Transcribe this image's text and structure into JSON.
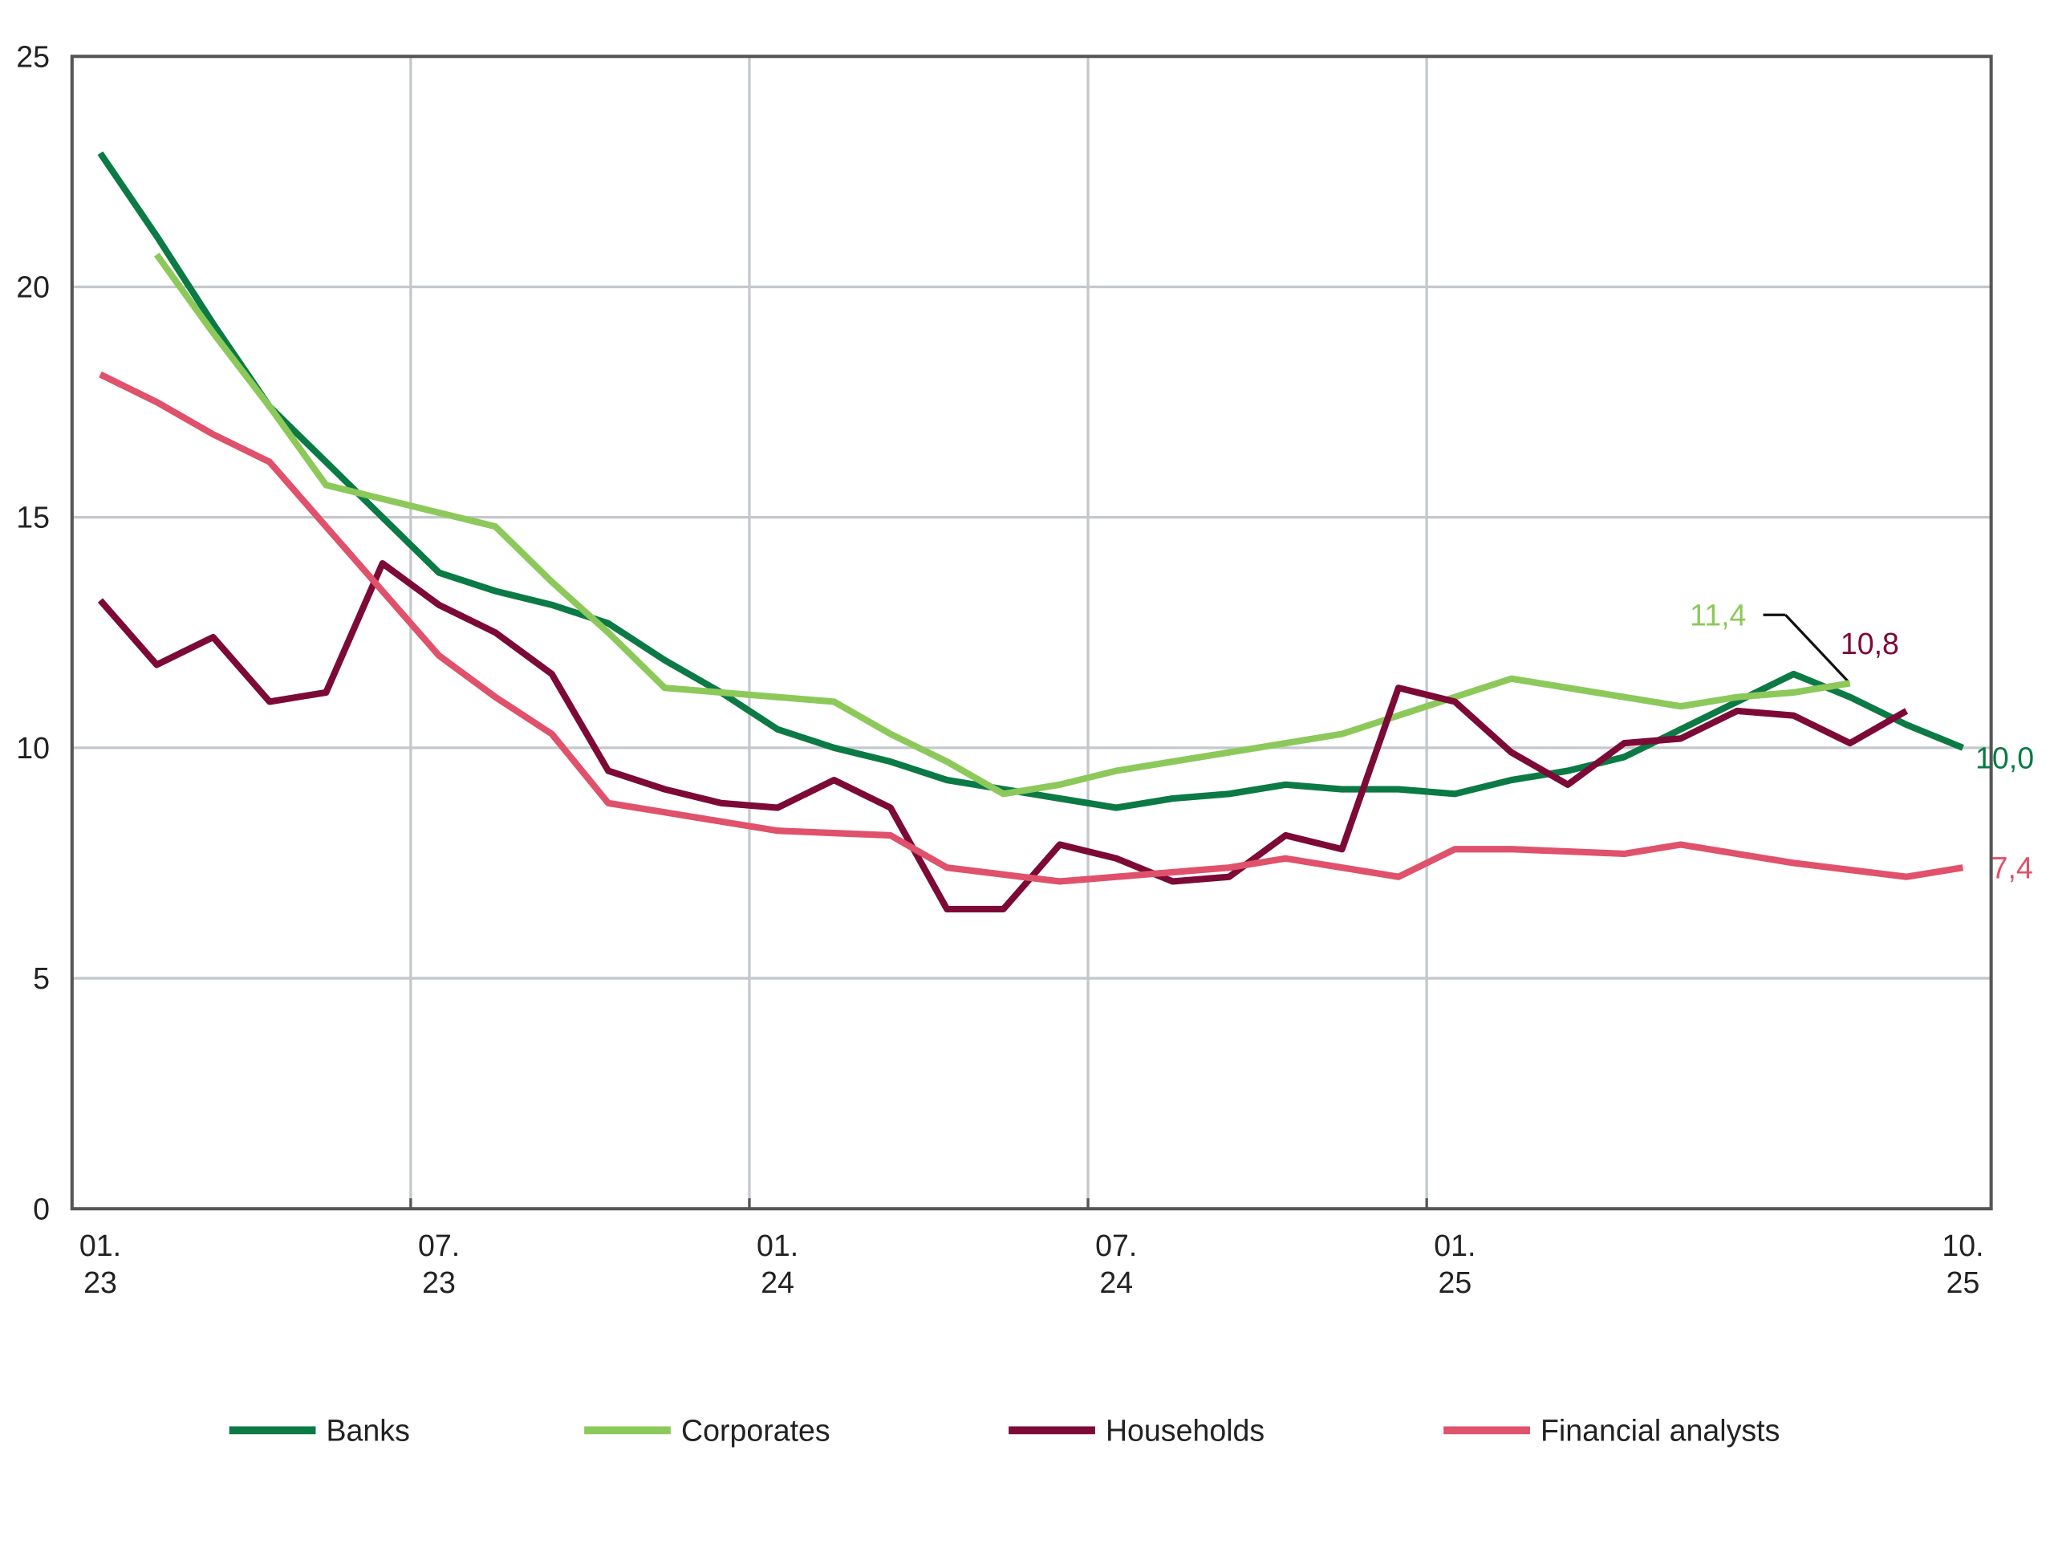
{
  "chart_data": {
    "type": "line",
    "categories": [
      "01. 23",
      null,
      null,
      null,
      null,
      null,
      "07. 23",
      null,
      null,
      null,
      null,
      null,
      "01. 24",
      null,
      null,
      null,
      null,
      null,
      "07. 24",
      null,
      null,
      null,
      null,
      null,
      "01. 25",
      null,
      null,
      null,
      null,
      null,
      null,
      null,
      null,
      "10. 25"
    ],
    "series": [
      {
        "name": "Banks",
        "color": "#0b7a45",
        "values": [
          22.9,
          21.1,
          19.2,
          17.4,
          16.2,
          15.0,
          13.8,
          13.4,
          13.1,
          12.7,
          11.9,
          11.2,
          10.4,
          10.0,
          9.7,
          9.3,
          9.1,
          8.9,
          8.7,
          8.9,
          9.0,
          9.2,
          9.1,
          9.1,
          9.0,
          9.3,
          9.5,
          9.8,
          10.4,
          11.0,
          11.6,
          11.1,
          10.5,
          10.0
        ]
      },
      {
        "name": "Corporates",
        "color": "#8cc95a",
        "values": [
          null,
          20.7,
          19.0,
          17.4,
          15.7,
          15.4,
          15.1,
          14.8,
          13.6,
          12.5,
          11.3,
          11.2,
          11.1,
          11.0,
          10.3,
          9.7,
          9.0,
          9.2,
          9.5,
          9.7,
          9.9,
          10.1,
          10.3,
          10.7,
          11.1,
          11.5,
          11.3,
          11.1,
          10.9,
          11.1,
          11.2,
          11.4,
          null,
          null
        ]
      },
      {
        "name": "Households",
        "color": "#7d0a36",
        "values": [
          13.2,
          11.8,
          12.4,
          11.0,
          11.2,
          14.0,
          13.1,
          12.5,
          11.6,
          9.5,
          9.1,
          8.8,
          8.7,
          9.3,
          8.7,
          6.5,
          6.5,
          7.9,
          7.6,
          7.1,
          7.2,
          8.1,
          7.8,
          11.3,
          11.0,
          9.9,
          9.2,
          10.1,
          10.2,
          10.8,
          10.7,
          10.1,
          10.8,
          null
        ]
      },
      {
        "name": "Financial analysts",
        "color": "#e0516b",
        "values": [
          18.1,
          17.5,
          16.8,
          16.2,
          14.8,
          13.4,
          12.0,
          11.1,
          10.3,
          8.8,
          8.6,
          8.4,
          8.2,
          8.15,
          8.1,
          7.4,
          7.25,
          7.1,
          7.2,
          7.3,
          7.4,
          7.6,
          7.4,
          7.2,
          7.8,
          7.8,
          7.75,
          7.7,
          7.9,
          7.7,
          7.5,
          7.35,
          7.2,
          7.4
        ]
      }
    ],
    "annotations": [
      {
        "text": "11,4",
        "color": "#8cc95a"
      },
      {
        "text": "10,8",
        "color": "#7d0a36"
      },
      {
        "text": "10,0",
        "color": "#0b7a45"
      },
      {
        "text": "7,4",
        "color": "#e0516b"
      }
    ],
    "ylim": [
      0,
      25
    ],
    "yticks": [
      0,
      5,
      10,
      15,
      20,
      25
    ],
    "grid": true,
    "legend": "bottom"
  }
}
